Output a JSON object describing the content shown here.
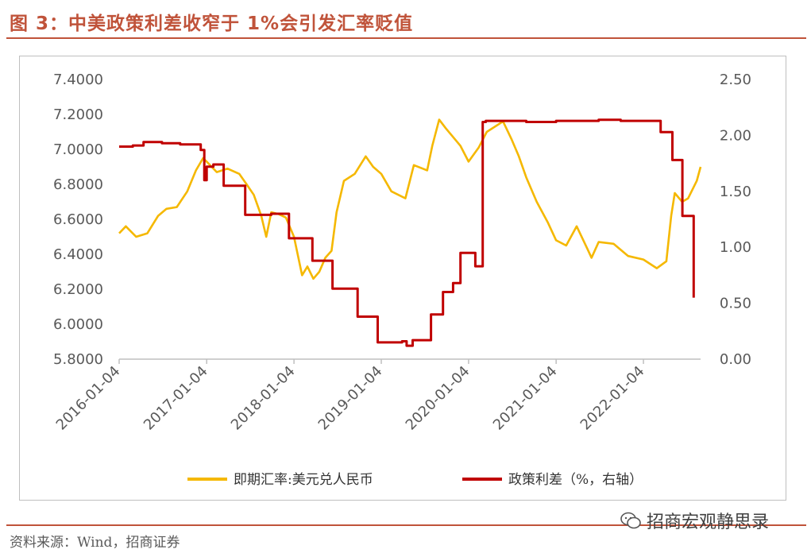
{
  "figure": {
    "title": "图 3：中美政策利差收窄于 1%会引发汇率贬值",
    "source": "资料来源：Wind，招商证券",
    "watermark": "招商宏观静思录",
    "watermark_icon": "wechat-icon"
  },
  "colors": {
    "fx": "#f5b800",
    "spread": "#c00000",
    "accent": "#c0533a"
  },
  "chart_data": {
    "type": "line",
    "title": "",
    "xlabel": "",
    "ylabel_left": "",
    "ylabel_right": "",
    "x_tick_labels": [
      "2016-01-04",
      "2017-01-04",
      "2018-01-04",
      "2019-01-04",
      "2020-01-04",
      "2021-01-04",
      "2022-01-04"
    ],
    "left_axis": {
      "range": [
        5.8,
        7.4
      ],
      "ticks": [
        "5.8000",
        "6.0000",
        "6.2000",
        "6.4000",
        "6.6000",
        "6.8000",
        "7.0000",
        "7.2000",
        "7.4000"
      ]
    },
    "right_axis": {
      "range": [
        0,
        2.5
      ],
      "ticks": [
        "0.00",
        "0.50",
        "1.00",
        "1.50",
        "2.00",
        "2.50"
      ]
    },
    "legend_position": "bottom",
    "grid": false,
    "series": [
      {
        "name": "即期汇率:美元兑人民币",
        "axis": "left",
        "points": [
          [
            "2016-01-04",
            6.52
          ],
          [
            "2016-02-01",
            6.56
          ],
          [
            "2016-03-15",
            6.5
          ],
          [
            "2016-05-01",
            6.52
          ],
          [
            "2016-06-15",
            6.62
          ],
          [
            "2016-07-20",
            6.66
          ],
          [
            "2016-09-01",
            6.67
          ],
          [
            "2016-10-15",
            6.76
          ],
          [
            "2016-11-20",
            6.88
          ],
          [
            "2016-12-20",
            6.95
          ],
          [
            "2017-01-04",
            6.93
          ],
          [
            "2017-02-15",
            6.87
          ],
          [
            "2017-04-01",
            6.89
          ],
          [
            "2017-05-20",
            6.86
          ],
          [
            "2017-06-20",
            6.8
          ],
          [
            "2017-07-20",
            6.74
          ],
          [
            "2017-08-20",
            6.62
          ],
          [
            "2017-09-10",
            6.5
          ],
          [
            "2017-10-01",
            6.64
          ],
          [
            "2017-11-01",
            6.63
          ],
          [
            "2017-12-01",
            6.61
          ],
          [
            "2018-01-04",
            6.5
          ],
          [
            "2018-02-07",
            6.28
          ],
          [
            "2018-03-01",
            6.33
          ],
          [
            "2018-03-26",
            6.26
          ],
          [
            "2018-04-20",
            6.3
          ],
          [
            "2018-05-15",
            6.38
          ],
          [
            "2018-06-10",
            6.42
          ],
          [
            "2018-07-01",
            6.64
          ],
          [
            "2018-08-01",
            6.82
          ],
          [
            "2018-09-15",
            6.86
          ],
          [
            "2018-10-31",
            6.96
          ],
          [
            "2018-12-01",
            6.9
          ],
          [
            "2019-01-04",
            6.86
          ],
          [
            "2019-02-15",
            6.76
          ],
          [
            "2019-04-15",
            6.72
          ],
          [
            "2019-05-20",
            6.91
          ],
          [
            "2019-07-15",
            6.88
          ],
          [
            "2019-08-05",
            7.02
          ],
          [
            "2019-09-03",
            7.17
          ],
          [
            "2019-10-01",
            7.12
          ],
          [
            "2019-12-01",
            7.02
          ],
          [
            "2020-01-04",
            6.93
          ],
          [
            "2020-02-15",
            7.01
          ],
          [
            "2020-03-20",
            7.1
          ],
          [
            "2020-05-27",
            7.16
          ],
          [
            "2020-07-01",
            7.06
          ],
          [
            "2020-08-01",
            6.96
          ],
          [
            "2020-09-01",
            6.84
          ],
          [
            "2020-10-15",
            6.7
          ],
          [
            "2020-12-01",
            6.58
          ],
          [
            "2021-01-04",
            6.48
          ],
          [
            "2021-02-15",
            6.45
          ],
          [
            "2021-03-31",
            6.56
          ],
          [
            "2021-05-15",
            6.43
          ],
          [
            "2021-06-01",
            6.38
          ],
          [
            "2021-07-01",
            6.47
          ],
          [
            "2021-09-01",
            6.46
          ],
          [
            "2021-11-01",
            6.39
          ],
          [
            "2022-01-04",
            6.37
          ],
          [
            "2022-03-01",
            6.32
          ],
          [
            "2022-04-10",
            6.36
          ],
          [
            "2022-04-30",
            6.62
          ],
          [
            "2022-05-15",
            6.75
          ],
          [
            "2022-06-15",
            6.7
          ],
          [
            "2022-07-10",
            6.72
          ],
          [
            "2022-08-15",
            6.82
          ],
          [
            "2022-08-31",
            6.9
          ]
        ]
      },
      {
        "name": "政策利差（%，右轴）",
        "axis": "right",
        "points": [
          [
            "2016-01-04",
            1.9
          ],
          [
            "2016-03-01",
            1.91
          ],
          [
            "2016-04-15",
            1.94
          ],
          [
            "2016-07-01",
            1.93
          ],
          [
            "2016-09-15",
            1.92
          ],
          [
            "2016-12-10",
            1.87
          ],
          [
            "2016-12-25",
            1.6
          ],
          [
            "2017-01-04",
            1.72
          ],
          [
            "2017-02-01",
            1.74
          ],
          [
            "2017-03-16",
            1.55
          ],
          [
            "2017-06-14",
            1.29
          ],
          [
            "2017-10-01",
            1.3
          ],
          [
            "2017-12-14",
            1.08
          ],
          [
            "2018-03-01",
            1.08
          ],
          [
            "2018-03-22",
            0.88
          ],
          [
            "2018-06-14",
            0.63
          ],
          [
            "2018-09-27",
            0.38
          ],
          [
            "2018-12-20",
            0.15
          ],
          [
            "2019-01-04",
            0.15
          ],
          [
            "2019-04-01",
            0.16
          ],
          [
            "2019-04-20",
            0.12
          ],
          [
            "2019-05-15",
            0.17
          ],
          [
            "2019-07-31",
            0.4
          ],
          [
            "2019-09-19",
            0.6
          ],
          [
            "2019-10-31",
            0.68
          ],
          [
            "2019-12-01",
            0.95
          ],
          [
            "2020-01-04",
            0.95
          ],
          [
            "2020-02-01",
            0.83
          ],
          [
            "2020-03-03",
            2.12
          ],
          [
            "2020-03-16",
            2.13
          ],
          [
            "2020-06-01",
            2.13
          ],
          [
            "2020-09-01",
            2.12
          ],
          [
            "2021-01-04",
            2.13
          ],
          [
            "2021-04-01",
            2.13
          ],
          [
            "2021-07-01",
            2.14
          ],
          [
            "2021-10-01",
            2.13
          ],
          [
            "2022-01-04",
            2.13
          ],
          [
            "2022-03-17",
            2.03
          ],
          [
            "2022-05-05",
            1.78
          ],
          [
            "2022-06-16",
            1.28
          ],
          [
            "2022-07-28",
            1.28
          ],
          [
            "2022-08-02",
            0.55
          ]
        ]
      }
    ]
  }
}
